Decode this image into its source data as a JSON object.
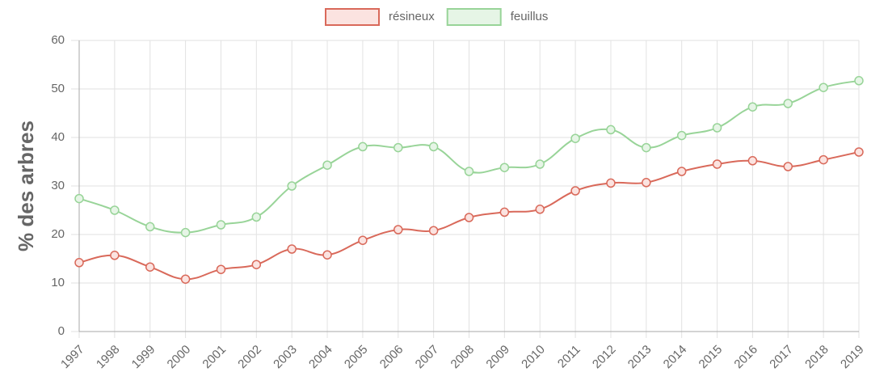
{
  "chart_data": {
    "type": "line",
    "y_label": "% des arbres",
    "categories": [
      "1997",
      "1998",
      "1999",
      "2000",
      "2001",
      "2002",
      "2003",
      "2004",
      "2005",
      "2006",
      "2007",
      "2008",
      "2009",
      "2010",
      "2011",
      "2012",
      "2013",
      "2014",
      "2015",
      "2016",
      "2017",
      "2018",
      "2019"
    ],
    "series": [
      {
        "name": "résineux",
        "color": "#d9695a",
        "fill": "#fbe3e0",
        "values": [
          14.2,
          15.7,
          13.3,
          10.8,
          12.8,
          13.8,
          17,
          15.8,
          18.8,
          21,
          20.8,
          23.5,
          24.6,
          25.2,
          29,
          30.6,
          30.7,
          33,
          34.5,
          35.2,
          34,
          35.4,
          37
        ]
      },
      {
        "name": "feuillus",
        "color": "#98d498",
        "fill": "#e6f5e6",
        "values": [
          27.4,
          25,
          21.6,
          20.4,
          22,
          23.6,
          30,
          34.3,
          38.1,
          37.9,
          38.1,
          33,
          33.8,
          34.5,
          39.8,
          41.6,
          37.9,
          40.4,
          42,
          46.3,
          47,
          50.3,
          51.7
        ]
      }
    ],
    "ylim": [
      0,
      60
    ],
    "yticks": [
      0,
      10,
      20,
      30,
      40,
      50,
      60
    ],
    "grid": true,
    "legend": "top"
  }
}
